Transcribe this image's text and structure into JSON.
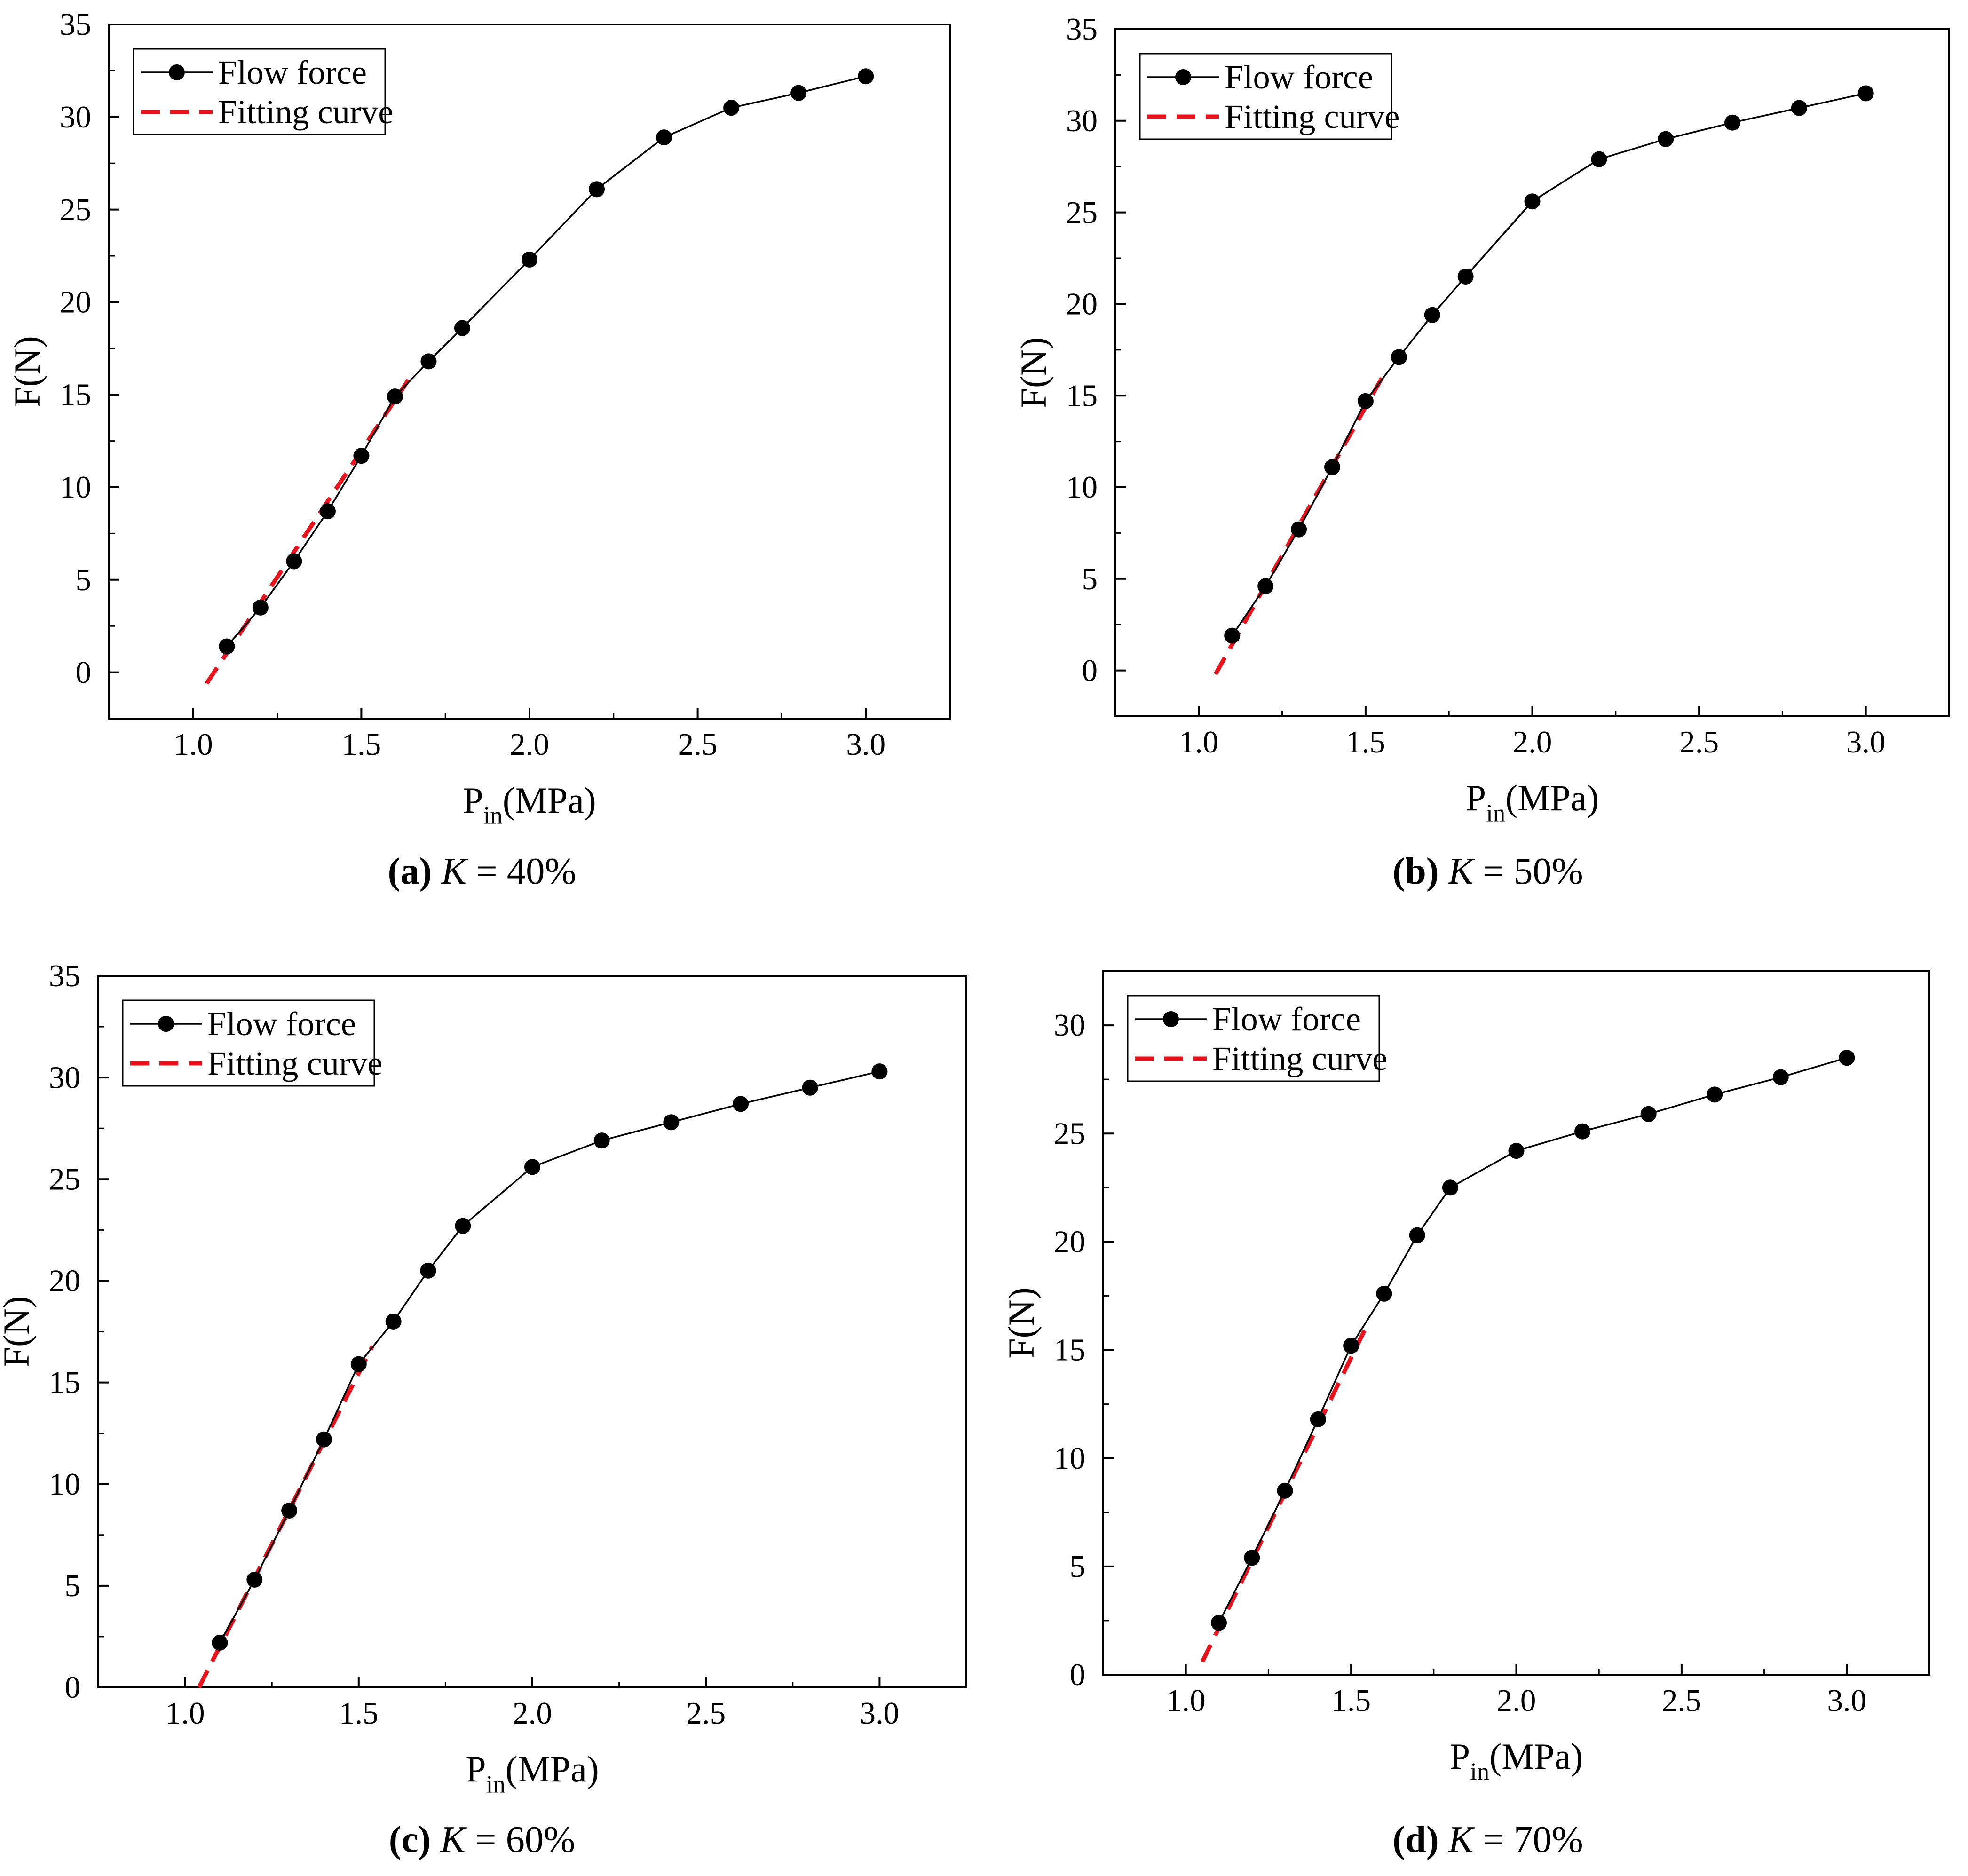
{
  "figure_title": "Flow force vs inlet pressure for different K",
  "colors": {
    "flow": "#000000",
    "fit": "#e8131c",
    "axis": "#000000",
    "background": "#ffffff"
  },
  "legend": {
    "flow_label": "Flow force",
    "fit_label": "Fitting curve"
  },
  "chart_data": [
    {
      "type": "line",
      "panel": "a",
      "caption": {
        "letter": "(a)",
        "k_label": "K",
        "value": " = 40%"
      },
      "xlabel": {
        "main": "P",
        "sub": "in",
        "unit": "(MPa)"
      },
      "ylabel": "F(N)",
      "xlim": [
        0.75,
        3.25
      ],
      "ylim": [
        -2.5,
        35
      ],
      "xticks": [
        1.0,
        1.5,
        2.0,
        2.5,
        3.0
      ],
      "xtick_labels": [
        "1.0",
        "1.5",
        "2.0",
        "2.5",
        "3.0"
      ],
      "yticks": [
        0,
        5,
        10,
        15,
        20,
        25,
        30,
        35
      ],
      "ytick_labels": [
        "0",
        "5",
        "10",
        "15",
        "20",
        "25",
        "30",
        "35"
      ],
      "legend_position": "top-left",
      "series": [
        {
          "name": "Flow force",
          "x": [
            1.1,
            1.2,
            1.3,
            1.4,
            1.5,
            1.6,
            1.7,
            1.8,
            2.0,
            2.2,
            2.4,
            2.6,
            2.8,
            3.0
          ],
          "values": [
            1.4,
            3.5,
            6.0,
            8.7,
            11.7,
            14.9,
            16.8,
            18.6,
            22.3,
            26.1,
            28.9,
            30.5,
            31.3,
            32.2
          ]
        },
        {
          "name": "Fitting curve",
          "x": [
            1.04,
            1.64
          ],
          "values": [
            -0.6,
            15.8
          ]
        }
      ]
    },
    {
      "type": "line",
      "panel": "b",
      "caption": {
        "letter": "(b)",
        "k_label": "K",
        "value": " = 50%"
      },
      "xlabel": {
        "main": "P",
        "sub": "in",
        "unit": "(MPa)"
      },
      "ylabel": "F(N)",
      "xlim": [
        0.75,
        3.25
      ],
      "ylim": [
        -2.5,
        35
      ],
      "xticks": [
        1.0,
        1.5,
        2.0,
        2.5,
        3.0
      ],
      "xtick_labels": [
        "1.0",
        "1.5",
        "2.0",
        "2.5",
        "3.0"
      ],
      "yticks": [
        0,
        5,
        10,
        15,
        20,
        25,
        30,
        35
      ],
      "ytick_labels": [
        "0",
        "5",
        "10",
        "15",
        "20",
        "25",
        "30",
        "35"
      ],
      "legend_position": "top-left",
      "series": [
        {
          "name": "Flow force",
          "x": [
            1.1,
            1.2,
            1.3,
            1.4,
            1.5,
            1.6,
            1.7,
            1.8,
            2.0,
            2.2,
            2.4,
            2.6,
            2.8,
            3.0
          ],
          "values": [
            1.9,
            4.6,
            7.7,
            11.1,
            14.7,
            17.1,
            19.4,
            21.5,
            25.6,
            27.9,
            29.0,
            29.9,
            30.7,
            31.5
          ]
        },
        {
          "name": "Fitting curve",
          "x": [
            1.05,
            1.55
          ],
          "values": [
            -0.2,
            16.0
          ]
        }
      ]
    },
    {
      "type": "line",
      "panel": "c",
      "caption": {
        "letter": "(c)",
        "k_label": "K",
        "value": " = 60%"
      },
      "xlabel": {
        "main": "P",
        "sub": "in",
        "unit": "(MPa)"
      },
      "ylabel": "F(N)",
      "xlim": [
        0.75,
        3.25
      ],
      "ylim": [
        0,
        35
      ],
      "xticks": [
        1.0,
        1.5,
        2.0,
        2.5,
        3.0
      ],
      "xtick_labels": [
        "1.0",
        "1.5",
        "2.0",
        "2.5",
        "3.0"
      ],
      "yticks": [
        0,
        5,
        10,
        15,
        20,
        25,
        30,
        35
      ],
      "ytick_labels": [
        "0",
        "5",
        "10",
        "15",
        "20",
        "25",
        "30",
        "35"
      ],
      "legend_position": "top-left",
      "series": [
        {
          "name": "Flow force",
          "x": [
            1.1,
            1.2,
            1.3,
            1.4,
            1.5,
            1.6,
            1.7,
            1.8,
            2.0,
            2.2,
            2.4,
            2.6,
            2.8,
            3.0
          ],
          "values": [
            2.2,
            5.3,
            8.7,
            12.2,
            15.9,
            18.0,
            20.5,
            22.7,
            25.6,
            26.9,
            27.8,
            28.7,
            29.5,
            30.3
          ]
        },
        {
          "name": "Fitting curve",
          "x": [
            1.04,
            1.54
          ],
          "values": [
            0.0,
            16.8
          ]
        }
      ]
    },
    {
      "type": "line",
      "panel": "d",
      "caption": {
        "letter": "(d)",
        "k_label": "K",
        "value": " = 70%"
      },
      "xlabel": {
        "main": "P",
        "sub": "in",
        "unit": "(MPa)"
      },
      "ylabel": "F(N)",
      "xlim": [
        0.75,
        3.25
      ],
      "ylim": [
        0,
        32.5
      ],
      "xticks": [
        1.0,
        1.5,
        2.0,
        2.5,
        3.0
      ],
      "xtick_labels": [
        "1.0",
        "1.5",
        "2.0",
        "2.5",
        "3.0"
      ],
      "yticks": [
        0,
        5,
        10,
        15,
        20,
        25,
        30
      ],
      "ytick_labels": [
        "0",
        "5",
        "10",
        "15",
        "20",
        "25",
        "30"
      ],
      "legend_position": "top-left",
      "series": [
        {
          "name": "Flow force",
          "x": [
            1.1,
            1.2,
            1.3,
            1.4,
            1.5,
            1.6,
            1.7,
            1.8,
            2.0,
            2.2,
            2.4,
            2.6,
            2.8,
            3.0
          ],
          "values": [
            2.4,
            5.4,
            8.5,
            11.8,
            15.2,
            17.6,
            20.3,
            22.5,
            24.2,
            25.1,
            25.9,
            26.8,
            27.6,
            28.5
          ]
        },
        {
          "name": "Fitting curve",
          "x": [
            1.05,
            1.55
          ],
          "values": [
            0.6,
            16.2
          ]
        }
      ]
    }
  ]
}
